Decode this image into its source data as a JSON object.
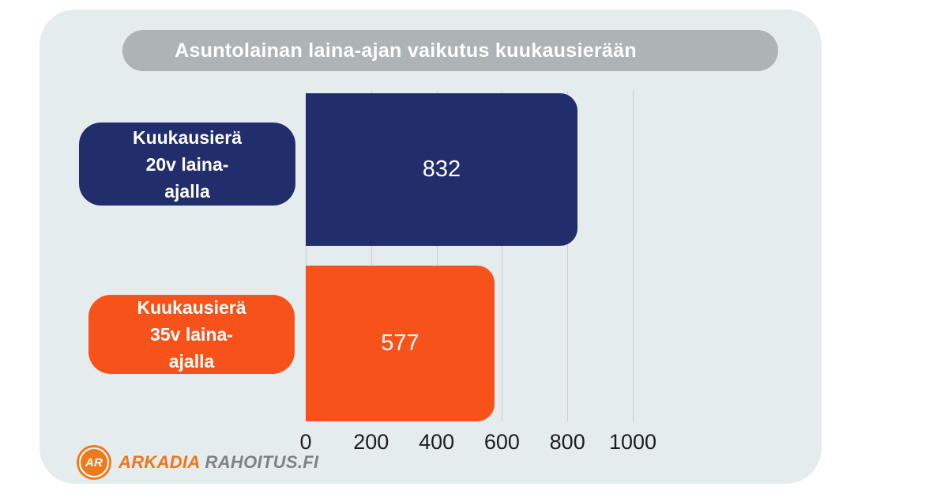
{
  "title": "Asuntolainan laina-ajan vaikutus kuukausierään",
  "chart_data": {
    "type": "bar",
    "orientation": "horizontal",
    "title": "Asuntolainan laina-ajan vaikutus kuukausierään",
    "categories": [
      "Kuukausierä 20v laina-ajalla",
      "Kuukausierä 35v laina-ajalla"
    ],
    "values": [
      832,
      577
    ],
    "xlabel": "",
    "ylabel": "",
    "xlim": [
      0,
      1000
    ],
    "xticks": [
      0,
      200,
      400,
      600,
      800,
      1000
    ],
    "grid": true,
    "legend": false,
    "bar_colors": [
      "#222d6b",
      "#f8521b"
    ]
  },
  "bars": [
    {
      "label": "Kuukausierä\n20v laina-\najalla",
      "value": "832"
    },
    {
      "label": "Kuukausierä\n35v laina-\najalla",
      "value": "577"
    }
  ],
  "axis": {
    "ticks": [
      "0",
      "200",
      "400",
      "600",
      "800",
      "1000"
    ]
  },
  "logo": {
    "initials": "AR",
    "brand_name": "ARKADIA",
    "brand_suffix": "RAHOITUS.FI"
  },
  "colors": {
    "card_bg": "#e5eced",
    "title_pill_bg": "#aeb4b5",
    "navy": "#222d6b",
    "orange": "#f8521b",
    "gridline": "#c9ced2",
    "tick_text": "#1d1d1d",
    "logo_orange": "#ee751c",
    "logo_gray": "#7e8286"
  }
}
